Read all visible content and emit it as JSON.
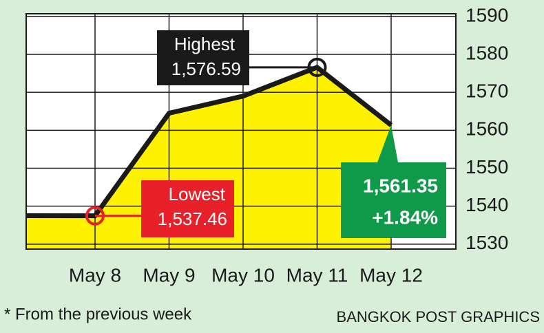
{
  "chart_data": {
    "type": "line",
    "categories": [
      null,
      "May 8",
      "May 9",
      "May 10",
      "May 11",
      "May 12"
    ],
    "values": [
      1537.5,
      1537.46,
      1564.5,
      1569,
      1576.59,
      1561.35
    ],
    "line_color": "#1a1a1a",
    "area_color": "#fff200",
    "ylim": [
      1528.7,
      1590.7
    ],
    "yticks": [
      1530,
      1540,
      1550,
      1560,
      1570,
      1580,
      1590
    ],
    "grid": true,
    "annotations": [
      {
        "title": "Highest",
        "text": "1,576.59",
        "color": "#1a1a1a"
      },
      {
        "title": "Lowest",
        "text": "1,537.46",
        "color": "#e8202a"
      },
      {
        "text": "1,561.35",
        "note": "+1.84%",
        "color": "#0f9a4a"
      }
    ],
    "footnote": "* From the previous week",
    "credit": "BANGKOK POST GRAPHICS"
  }
}
